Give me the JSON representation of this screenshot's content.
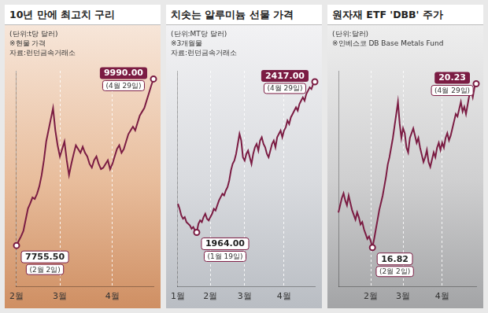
{
  "chart_data": [
    {
      "type": "line",
      "title": "10년 만에 최고치 구리",
      "notes": [
        "(단위:t당 달러)",
        "※현물 가격",
        "자료:런던금속거래소"
      ],
      "categories": [
        "2월",
        null,
        null,
        null,
        null,
        null,
        null,
        null,
        null,
        null,
        null,
        null,
        null,
        null,
        null,
        null,
        null,
        null,
        null,
        "3월",
        null,
        null,
        null,
        null,
        null,
        null,
        null,
        null,
        null,
        null,
        null,
        null,
        null,
        null,
        null,
        null,
        null,
        null,
        null,
        null,
        null,
        null,
        "4월",
        null,
        null,
        null,
        null,
        null,
        null,
        null,
        null,
        null,
        null,
        null,
        null,
        null,
        null,
        null,
        null,
        null,
        null
      ],
      "values": [
        7755.5,
        7820,
        7880,
        7950,
        8100,
        8250,
        8320,
        8400,
        8380,
        8450,
        8550,
        8700,
        8900,
        9150,
        9300,
        9450,
        9600,
        9300,
        9100,
        8950,
        9050,
        9150,
        8900,
        8700,
        8850,
        8980,
        9100,
        9050,
        9000,
        9080,
        9000,
        8950,
        8850,
        8800,
        8900,
        8950,
        8850,
        8780,
        8800,
        8850,
        8900,
        8780,
        8850,
        8950,
        9050,
        9100,
        9000,
        9050,
        9150,
        9250,
        9300,
        9350,
        9300,
        9400,
        9500,
        9550,
        9600,
        9700,
        9800,
        9900,
        9990
      ],
      "color": "#7b1c43",
      "ylim": [
        7200,
        10100
      ],
      "grid": true,
      "tick_labels": "x",
      "annotations": [
        {
          "value": 9990,
          "label": "9990.00",
          "note": "(4월 29일)"
        },
        {
          "value": 7755.5,
          "label": "7755.50",
          "note": "(2월 2일)"
        }
      ]
    },
    {
      "type": "line",
      "title": "치솟는 알루미늄 선물 가격",
      "notes": [
        "(단위:MT당 달러)",
        "※3개월물",
        "자료:런던금속거래소"
      ],
      "categories": [
        "1월",
        null,
        null,
        null,
        null,
        null,
        null,
        null,
        null,
        null,
        null,
        null,
        null,
        null,
        null,
        null,
        null,
        null,
        null,
        "2월",
        null,
        null,
        null,
        null,
        null,
        null,
        null,
        null,
        null,
        null,
        null,
        null,
        null,
        null,
        null,
        null,
        null,
        null,
        null,
        "3월",
        null,
        null,
        null,
        null,
        null,
        null,
        null,
        null,
        null,
        null,
        null,
        null,
        null,
        null,
        null,
        null,
        null,
        null,
        null,
        null,
        null,
        null,
        "4월",
        null,
        null,
        null,
        null,
        null,
        null,
        null,
        null,
        null,
        null,
        null,
        null,
        null,
        null,
        null,
        null,
        null,
        null
      ],
      "values": [
        2050,
        2035,
        2015,
        2005,
        2010,
        1995,
        1990,
        1985,
        1975,
        1980,
        1970,
        1964,
        1990,
        2000,
        1995,
        2010,
        2020,
        2005,
        2000,
        2010,
        2020,
        2035,
        2030,
        2045,
        2060,
        2070,
        2080,
        2075,
        2090,
        2100,
        2120,
        2150,
        2170,
        2180,
        2200,
        2230,
        2260,
        2240,
        2190,
        2180,
        2200,
        2210,
        2190,
        2170,
        2200,
        2220,
        2230,
        2210,
        2240,
        2250,
        2230,
        2220,
        2200,
        2190,
        2210,
        2230,
        2240,
        2220,
        2250,
        2260,
        2270,
        2250,
        2270,
        2280,
        2300,
        2290,
        2310,
        2320,
        2330,
        2340,
        2330,
        2350,
        2360,
        2370,
        2360,
        2380,
        2390,
        2400,
        2395,
        2410,
        2417
      ],
      "color": "#7b1c43",
      "ylim": [
        1800,
        2450
      ],
      "grid": true,
      "tick_labels": "x",
      "annotations": [
        {
          "value": 2417,
          "label": "2417.00",
          "note": "(4월 29일)"
        },
        {
          "value": 1964,
          "label": "1964.00",
          "note": "(1월 19일)"
        }
      ]
    },
    {
      "type": "line",
      "title": "원자재 ETF 'DBB' 주가",
      "notes": [
        "(단위:달러)",
        "※인베스코 DB Base Metals Fund"
      ],
      "categories": [
        null,
        null,
        null,
        null,
        null,
        null,
        null,
        null,
        null,
        null,
        null,
        null,
        null,
        null,
        null,
        null,
        null,
        null,
        null,
        "2월",
        null,
        null,
        null,
        null,
        null,
        null,
        null,
        null,
        null,
        null,
        null,
        null,
        null,
        null,
        null,
        null,
        null,
        null,
        "3월",
        null,
        null,
        null,
        null,
        null,
        null,
        null,
        null,
        null,
        null,
        null,
        null,
        null,
        null,
        null,
        null,
        null,
        null,
        null,
        null,
        null,
        null,
        "4월",
        null,
        null,
        null,
        null,
        null,
        null,
        null,
        null,
        null,
        null,
        null,
        null,
        null,
        null,
        null,
        null,
        null,
        null,
        null,
        null
      ],
      "values": [
        17.55,
        17.7,
        17.85,
        17.95,
        17.8,
        17.7,
        17.9,
        17.75,
        17.6,
        17.5,
        17.4,
        17.55,
        17.45,
        17.3,
        17.35,
        17.2,
        17.1,
        17.0,
        17.05,
        16.95,
        16.82,
        17.0,
        17.2,
        17.4,
        17.6,
        17.75,
        17.9,
        18.1,
        18.3,
        18.55,
        18.7,
        18.9,
        19.1,
        19.35,
        19.6,
        19.85,
        19.4,
        19.1,
        19.3,
        19.2,
        18.9,
        18.8,
        19.1,
        19.2,
        19.3,
        19.15,
        19.0,
        19.1,
        18.9,
        18.75,
        18.6,
        18.7,
        18.85,
        18.6,
        18.5,
        18.65,
        18.8,
        18.7,
        18.9,
        19.0,
        18.85,
        19.0,
        18.9,
        19.1,
        19.2,
        19.05,
        19.15,
        19.3,
        19.45,
        19.6,
        19.55,
        19.7,
        19.85,
        19.65,
        19.75,
        19.6,
        19.8,
        20.0,
        20.1,
        19.95,
        20.15,
        20.23
      ],
      "color": "#7b1c43",
      "ylim": [
        16.0,
        20.5
      ],
      "grid": true,
      "tick_labels": "x",
      "annotations": [
        {
          "value": 20.23,
          "label": "20.23",
          "note": "(4월 29일)"
        },
        {
          "value": 16.82,
          "label": "16.82",
          "note": "(2월 2일)"
        }
      ]
    }
  ]
}
